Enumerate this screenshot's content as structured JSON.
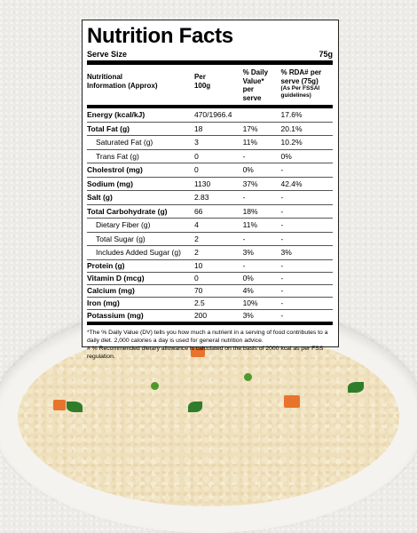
{
  "title": "Nutrition Facts",
  "serve_size_label": "Serve Size",
  "serve_size_value": "75g",
  "headers": {
    "col1_line1": "Nutritional",
    "col1_line2": "Information (Approx)",
    "col2_line1": "Per",
    "col2_line2": "100g",
    "col3_line1": "% Daily",
    "col3_line2": "Value*",
    "col3_line3": "per",
    "col3_line4": "serve",
    "col4_line1": "% RDA# per",
    "col4_line2": "serve (75g)",
    "col4_sub1": "(As Per FSSAI",
    "col4_sub2": "guidelines)"
  },
  "rows": [
    {
      "name": "Energy (kcal/kJ)",
      "per100": "470/1966.4",
      "dv": "",
      "rda": "17.6%"
    },
    {
      "name": "Total Fat (g)",
      "per100": "18",
      "dv": "17%",
      "rda": "20.1%"
    },
    {
      "name": "Saturated Fat (g)",
      "per100": "3",
      "dv": "11%",
      "rda": "10.2%"
    },
    {
      "name": "Trans Fat (g)",
      "per100": "0",
      "dv": "-",
      "rda": "0%"
    },
    {
      "name": "Cholestrol (mg)",
      "per100": "0",
      "dv": "0%",
      "rda": "-"
    },
    {
      "name": "Sodium (mg)",
      "per100": "1130",
      "dv": "37%",
      "rda": "42.4%"
    },
    {
      "name": "Salt (g)",
      "per100": "2.83",
      "dv": "-",
      "rda": "-"
    },
    {
      "name": "Total Carbohydrate (g)",
      "per100": "66",
      "dv": "18%",
      "rda": "-"
    },
    {
      "name": "Dietary Fiber (g)",
      "per100": "4",
      "dv": "11%",
      "rda": "-"
    },
    {
      "name": "Total Sugar (g)",
      "per100": "2",
      "dv": "-",
      "rda": "-"
    },
    {
      "name": "Includes Added Sugar (g)",
      "per100": "2",
      "dv": "3%",
      "rda": "3%"
    },
    {
      "name": "Protein (g)",
      "per100": "10",
      "dv": "-",
      "rda": "-"
    },
    {
      "name": "Vitamin D (mcg)",
      "per100": "0",
      "dv": "0%",
      "rda": "-"
    },
    {
      "name": "Calcium (mg)",
      "per100": "70",
      "dv": "4%",
      "rda": "-"
    },
    {
      "name": "Iron (mg)",
      "per100": "2.5",
      "dv": "10%",
      "rda": "-"
    },
    {
      "name": "Potassium (mg)",
      "per100": "200",
      "dv": "3%",
      "rda": "-"
    }
  ],
  "footnote_dv": "*The % Daily Value (DV) tells you how much a nutrient in a serving of food contributes to a daily diet. 2,000 calories a day is used for general nutrition advice.",
  "footnote_rda": "# % Recommended dietary allowance is calculated on the basis of 2000 kcal as per FSS regulation.",
  "colors": {
    "background": "#ecebe8",
    "card": "#ffffff",
    "text": "#000000",
    "bowl": "#f4f3ef",
    "food": "#eee0bd",
    "carrot": "#e8732c",
    "pea": "#4d9a2a",
    "coriander": "#2f7d2a"
  }
}
